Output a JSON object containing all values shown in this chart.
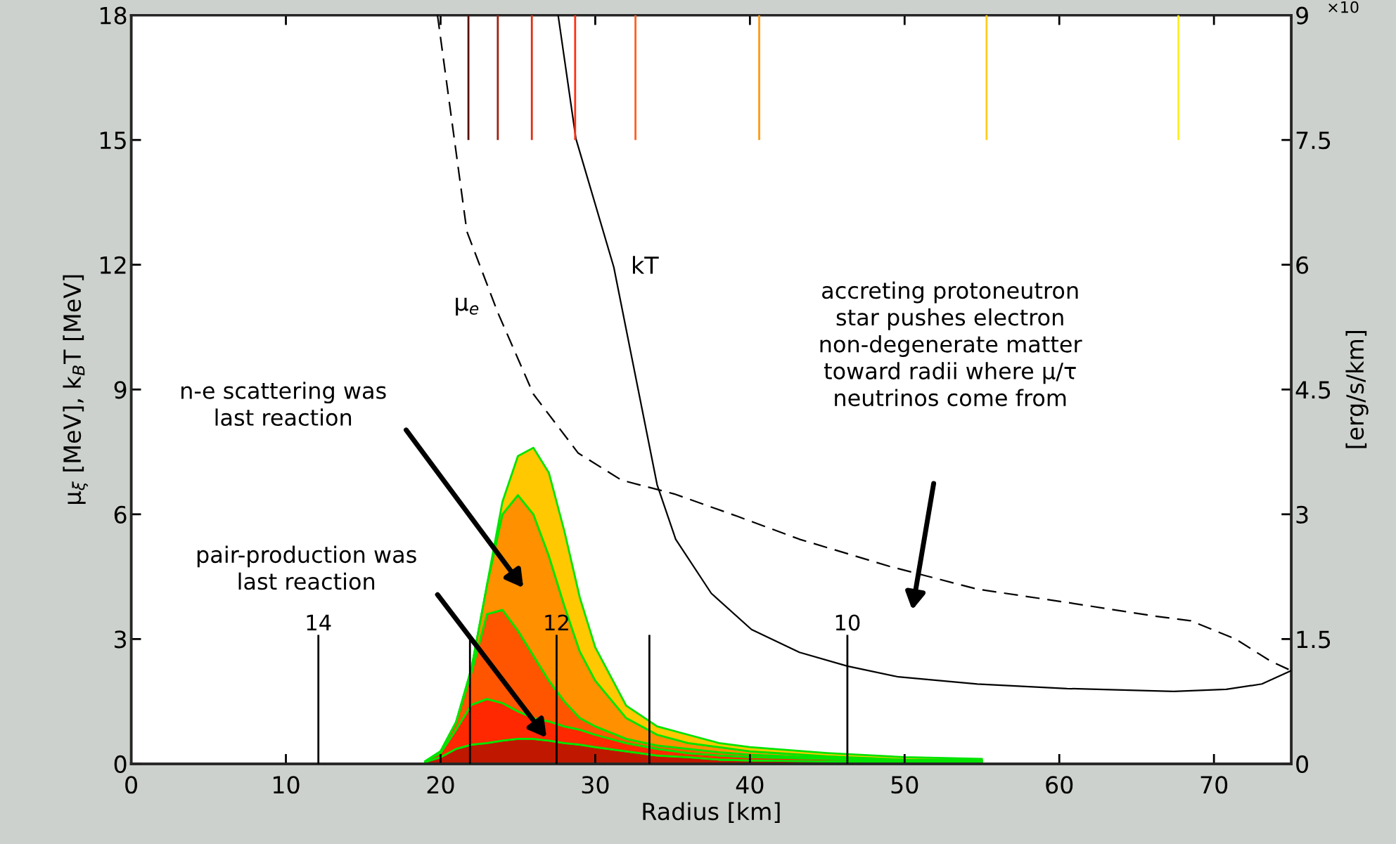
{
  "chart_data": {
    "type": "line",
    "xlabel": "Radius [km]",
    "ylabel": "μ$_{ξ}$ [MeV], k$_{B}$T [MeV]",
    "y2label": "[erg/s/km]",
    "xlim": [
      0,
      75
    ],
    "xticks": [
      0,
      10,
      20,
      30,
      40,
      50,
      60,
      70
    ],
    "ylim": [
      0,
      18
    ],
    "yticks": [
      0,
      3,
      6,
      9,
      12,
      15,
      18
    ],
    "y2lim": [
      0,
      9
    ],
    "y2ticks": [
      0,
      1.5,
      3,
      4.5,
      6,
      7.5,
      9
    ],
    "grid": false,
    "legend": false,
    "stacked": true,
    "series": [
      {
        "type": "area",
        "axis": "y2",
        "color": "#c01800",
        "x": [
          19,
          20,
          21,
          22,
          23,
          24,
          25,
          26,
          27,
          28,
          29,
          30,
          32,
          34,
          36,
          38,
          40,
          45,
          50,
          55
        ],
        "values": [
          0.02,
          0.08,
          0.18,
          0.23,
          0.25,
          0.28,
          0.3,
          0.3,
          0.28,
          0.25,
          0.23,
          0.2,
          0.15,
          0.1,
          0.08,
          0.05,
          0.04,
          0.03,
          0.02,
          0.01
        ]
      },
      {
        "type": "area",
        "axis": "y2",
        "color": "#ff2800",
        "x": [
          19,
          20,
          21,
          22,
          23,
          24,
          25,
          26,
          27,
          28,
          29,
          30,
          32,
          34,
          36,
          38,
          40,
          45,
          50,
          55
        ],
        "values": [
          0.01,
          0.05,
          0.23,
          0.48,
          0.53,
          0.45,
          0.33,
          0.25,
          0.23,
          0.2,
          0.18,
          0.15,
          0.1,
          0.08,
          0.05,
          0.05,
          0.04,
          0.03,
          0.01,
          0.01
        ]
      },
      {
        "type": "area",
        "axis": "y2",
        "color": "#ff5500",
        "x": [
          19,
          20,
          21,
          22,
          23,
          24,
          25,
          26,
          27,
          28,
          29,
          30,
          32,
          34,
          36,
          38,
          40,
          45,
          50,
          55
        ],
        "values": [
          0.0,
          0.02,
          0.09,
          0.39,
          1.02,
          1.12,
          0.97,
          0.75,
          0.49,
          0.3,
          0.14,
          0.1,
          0.05,
          0.04,
          0.05,
          0.04,
          0.03,
          0.01,
          0.01,
          0.01
        ]
      },
      {
        "type": "area",
        "axis": "y2",
        "color": "#ff9000",
        "x": [
          19,
          20,
          21,
          22,
          23,
          24,
          25,
          26,
          27,
          28,
          29,
          30,
          32,
          34,
          36,
          38,
          40,
          45,
          50,
          55
        ],
        "values": [
          0,
          0,
          0,
          0.05,
          0.35,
          1.15,
          1.63,
          1.7,
          1.5,
          1.15,
          0.8,
          0.55,
          0.25,
          0.13,
          0.07,
          0.06,
          0.04,
          0.02,
          0.01,
          0.01
        ]
      },
      {
        "type": "area",
        "axis": "y2",
        "color": "#ffc800",
        "x": [
          19,
          20,
          21,
          22,
          23,
          24,
          25,
          26,
          27,
          28,
          29,
          30,
          32,
          34,
          36,
          38,
          40,
          45,
          50,
          55
        ],
        "values": [
          0,
          0,
          0,
          0,
          0,
          0.15,
          0.47,
          0.8,
          1.0,
          0.9,
          0.65,
          0.4,
          0.15,
          0.1,
          0.1,
          0.05,
          0.05,
          0.04,
          0.03,
          0.02
        ]
      },
      {
        "type": "line",
        "name": "μ$_{e}$",
        "color": "#000000",
        "line_style": "dashed",
        "x": [
          19.8,
          21.7,
          23.7,
          26.0,
          28.9,
          31.7,
          35.1,
          39.2,
          43.2,
          49.0,
          54.7,
          60.5,
          66.2,
          68.5,
          71.4,
          73.7,
          75
        ],
        "values": [
          18,
          12.8,
          10.85,
          8.89,
          7.47,
          6.82,
          6.49,
          5.95,
          5.4,
          4.75,
          4.2,
          3.88,
          3.55,
          3.44,
          3.0,
          2.46,
          2.24
        ]
      },
      {
        "type": "line",
        "name": "kT",
        "color": "#000000",
        "line_style": "solid",
        "x": [
          27.6,
          28.75,
          31.2,
          34.0,
          35.2,
          37.5,
          40.1,
          43.2,
          46.3,
          49.6,
          54.7,
          60.5,
          67.4,
          70.8,
          73.1,
          75
        ],
        "values": [
          18,
          15.03,
          11.94,
          6.71,
          5.4,
          4.1,
          3.23,
          2.68,
          2.35,
          2.09,
          1.92,
          1.81,
          1.74,
          1.79,
          1.92,
          2.24
        ]
      },
      {
        "type": "line",
        "color": "#5a1008",
        "x": [
          21.8,
          21.8
        ],
        "values": [
          15,
          18
        ]
      },
      {
        "type": "line",
        "color": "#a02010",
        "x": [
          23.7,
          23.7
        ],
        "values": [
          15,
          18
        ]
      },
      {
        "type": "line",
        "color": "#e03010",
        "x": [
          25.9,
          25.9
        ],
        "values": [
          15,
          18
        ]
      },
      {
        "type": "line",
        "color": "#ff3010",
        "x": [
          28.7,
          28.7
        ],
        "values": [
          15,
          18
        ]
      },
      {
        "type": "line",
        "color": "#ff6020",
        "x": [
          32.6,
          32.6
        ],
        "values": [
          15,
          18
        ]
      },
      {
        "type": "line",
        "color": "#ff9a10",
        "x": [
          40.6,
          40.6
        ],
        "values": [
          15,
          18
        ]
      },
      {
        "type": "line",
        "color": "#ffcc20",
        "x": [
          55.3,
          55.3
        ],
        "values": [
          15,
          18
        ]
      },
      {
        "type": "line",
        "color": "#ffee20",
        "x": [
          67.7,
          67.7
        ],
        "values": [
          15,
          18
        ]
      },
      {
        "type": "line",
        "name": "14",
        "color": "#000000",
        "x": [
          12.1,
          12.1
        ],
        "values": [
          0,
          3.1
        ]
      },
      {
        "type": "line",
        "color": "#000000",
        "x": [
          21.9,
          21.9
        ],
        "values": [
          0,
          3.1
        ]
      },
      {
        "type": "line",
        "name": "12",
        "color": "#000000",
        "x": [
          27.5,
          27.5
        ],
        "values": [
          0,
          3.1
        ]
      },
      {
        "type": "line",
        "color": "#000000",
        "x": [
          33.5,
          33.5
        ],
        "values": [
          0,
          3.1
        ]
      },
      {
        "type": "line",
        "name": "10",
        "color": "#000000",
        "x": [
          46.3,
          46.3
        ],
        "values": [
          0,
          3.1
        ]
      }
    ],
    "annotations": [
      "n-e scattering was\nlast reaction",
      "pair-production was\nlast reaction",
      "accreting protoneutron\nstar pushes electron\nnon-degenerate matter\ntoward radii where μ/τ\nneutrinos come from",
      "×10"
    ]
  }
}
